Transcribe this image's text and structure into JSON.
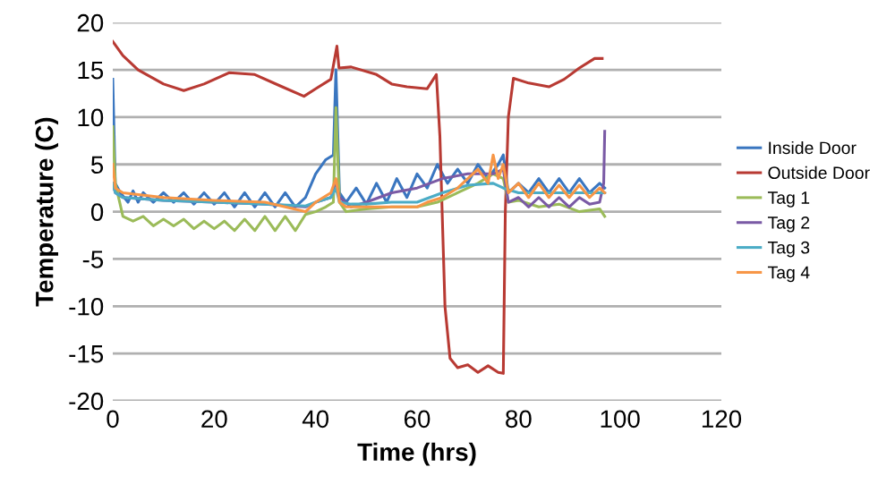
{
  "chart_data": {
    "type": "line",
    "xlabel": "Time (hrs)",
    "ylabel": "Temperature (C)",
    "xlim": [
      0,
      120
    ],
    "xticks": [
      0,
      20,
      40,
      60,
      80,
      100,
      120
    ],
    "ylim": [
      -20,
      20
    ],
    "yticks": [
      -20,
      -15,
      -10,
      -5,
      0,
      5,
      10,
      15,
      20
    ],
    "grid": "y",
    "legend": "right",
    "marker": "none",
    "line_style": "solid",
    "series": [
      {
        "name": "Inside Door",
        "color": "#3a76c0",
        "x": [
          0,
          0.5,
          1.5,
          3,
          4,
          5,
          6,
          8,
          10,
          12,
          14,
          16,
          18,
          20,
          22,
          24,
          26,
          28,
          30,
          32,
          34,
          36,
          38,
          40,
          42,
          43.5,
          44,
          44.7,
          46,
          48,
          50,
          52,
          54,
          56,
          58,
          60,
          62,
          64,
          66,
          68,
          70,
          72,
          74,
          76,
          77,
          78,
          80,
          82,
          84,
          86,
          88,
          90,
          92,
          94,
          96,
          97
        ],
        "values": [
          14,
          3,
          2,
          1,
          2.2,
          1,
          2,
          1,
          2,
          1,
          2,
          0.8,
          2,
          0.8,
          2,
          0.5,
          2,
          0.5,
          2,
          0.5,
          2,
          0.5,
          1.5,
          4,
          5.5,
          6,
          15,
          2,
          1,
          2.5,
          0.8,
          3,
          1,
          3.5,
          1.5,
          4,
          2.5,
          5,
          3,
          4.5,
          3,
          5,
          3.5,
          5,
          6,
          2,
          3,
          2,
          3.5,
          2,
          3.5,
          2,
          3.5,
          2,
          3,
          2.5
        ]
      },
      {
        "name": "Outside Door",
        "color": "#b83a33",
        "x": [
          0,
          2,
          5,
          10,
          14,
          18,
          23,
          28,
          33,
          37.7,
          40,
          43,
          44.2,
          44.6,
          47,
          52,
          55,
          58,
          62,
          63.8,
          64.5,
          65.5,
          66.5,
          68,
          70,
          72,
          74,
          76,
          77,
          77.4,
          78,
          79,
          82,
          86,
          89,
          92,
          95,
          96.5
        ],
        "values": [
          18,
          16.5,
          15,
          13.5,
          12.8,
          13.5,
          14.7,
          14.5,
          13.3,
          12.2,
          13,
          14,
          17.5,
          15.2,
          15.3,
          14.5,
          13.5,
          13.2,
          13,
          14.5,
          8,
          -10,
          -15.5,
          -16.5,
          -16.2,
          -17,
          -16.3,
          -17,
          -17.1,
          0,
          10,
          14.1,
          13.6,
          13.2,
          14,
          15.2,
          16.2,
          16.2
        ]
      },
      {
        "name": "Tag 1",
        "color": "#9bbb59",
        "x": [
          0,
          0.5,
          2,
          4,
          6,
          8,
          10,
          12,
          14,
          16,
          18,
          20,
          22,
          24,
          26,
          28,
          30,
          32,
          34,
          36,
          38,
          40,
          42,
          43.5,
          44,
          44.7,
          46,
          50,
          55,
          60,
          64,
          68,
          72,
          75,
          77,
          78,
          80,
          84,
          88,
          92,
          96,
          97
        ],
        "values": [
          9,
          3,
          -0.5,
          -1,
          -0.5,
          -1.5,
          -0.8,
          -1.5,
          -0.8,
          -1.8,
          -1,
          -1.8,
          -1,
          -2,
          -0.8,
          -2,
          -0.5,
          -2,
          -0.5,
          -2,
          -0.3,
          0,
          0.5,
          1,
          11,
          1,
          0,
          0.3,
          0.5,
          0.5,
          1,
          2,
          3,
          4,
          3.5,
          1,
          1.2,
          0.5,
          0.8,
          0,
          0.3,
          -0.5
        ]
      },
      {
        "name": "Tag 2",
        "color": "#7a5aa5",
        "x": [
          0,
          0.5,
          2,
          10,
          20,
          30,
          38,
          40,
          43,
          44,
          44.7,
          47,
          50,
          55,
          60,
          65,
          70,
          75,
          77,
          78,
          80,
          82,
          84,
          86,
          88,
          90,
          92,
          94,
          96,
          96.8,
          97
        ],
        "values": [
          3,
          2,
          1.5,
          1.2,
          1,
          0.8,
          0.5,
          1,
          1.5,
          3,
          1.5,
          0.5,
          1,
          2,
          2.5,
          3.5,
          4,
          4,
          4.5,
          1,
          1.5,
          0.5,
          1.5,
          0.5,
          1.5,
          0.5,
          1.5,
          0.8,
          1,
          3,
          8.5
        ]
      },
      {
        "name": "Tag 3",
        "color": "#4bacc6",
        "x": [
          0,
          0.5,
          2,
          10,
          20,
          30,
          38,
          40,
          43,
          44,
          44.7,
          47,
          50,
          55,
          60,
          65,
          70,
          75,
          77,
          80,
          85,
          90,
          95,
          97
        ],
        "values": [
          3,
          2,
          1.5,
          1.2,
          1,
          0.8,
          0.6,
          1,
          1.5,
          2.5,
          1,
          0.8,
          0.8,
          1,
          1,
          2,
          2.8,
          3,
          2.5,
          2,
          2,
          2,
          2,
          2
        ]
      },
      {
        "name": "Tag 4",
        "color": "#f79646",
        "x": [
          0,
          0.5,
          2,
          10,
          20,
          30,
          38,
          40,
          43,
          44,
          44.7,
          46,
          50,
          55,
          60,
          62,
          65,
          68,
          70,
          72,
          74,
          75,
          76,
          77,
          78,
          80,
          82,
          84,
          86,
          88,
          90,
          92,
          94,
          96,
          97
        ],
        "values": [
          5,
          2.5,
          2,
          1.5,
          1.2,
          1,
          0,
          1,
          2,
          3.5,
          1,
          0.5,
          0.5,
          0.5,
          0.5,
          1,
          1.5,
          2.5,
          3.5,
          4.5,
          3,
          6,
          3.5,
          5,
          2,
          3,
          1.5,
          3,
          1.5,
          2.8,
          1.5,
          2.8,
          1.5,
          2.5,
          2
        ]
      }
    ]
  }
}
